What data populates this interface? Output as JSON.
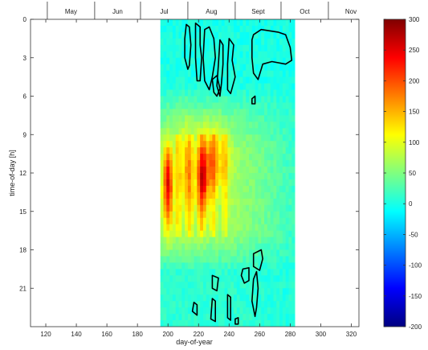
{
  "chart_data": {
    "type": "heatmap",
    "title": "",
    "xlabel": "day-of-year",
    "ylabel": "time-of-day [h]",
    "xlim": [
      110,
      325
    ],
    "ylim": [
      24,
      0
    ],
    "x_ticks": [
      120,
      140,
      160,
      180,
      200,
      220,
      240,
      260,
      280,
      300,
      320
    ],
    "y_ticks": [
      0,
      3,
      6,
      9,
      12,
      15,
      18,
      21
    ],
    "months": [
      {
        "label": "May",
        "start_doy": 121
      },
      {
        "label": "Jun",
        "start_doy": 152
      },
      {
        "label": "Jul",
        "start_doy": 182
      },
      {
        "label": "Aug",
        "start_doy": 213
      },
      {
        "label": "Sept",
        "start_doy": 244
      },
      {
        "label": "Oct",
        "start_doy": 274
      },
      {
        "label": "Nov",
        "start_doy": 305
      }
    ],
    "data_extent": {
      "x": [
        195,
        283
      ],
      "y": [
        0,
        24
      ]
    },
    "colorbar": {
      "colormap": "jet",
      "range": [
        -200,
        300
      ],
      "ticks": [
        300,
        250,
        200,
        150,
        100,
        50,
        0,
        -50,
        -100,
        -150,
        -200
      ]
    },
    "contour_level": 0,
    "hotspots": [
      {
        "day": 200,
        "hour": 13.0,
        "value": 270,
        "day_spread": 3,
        "hour_spread": 3.0
      },
      {
        "day": 223,
        "hour": 12.6,
        "value": 220,
        "day_spread": 4,
        "hour_spread": 2.8
      },
      {
        "day": 230,
        "hour": 11.0,
        "value": 165,
        "day_spread": 8,
        "hour_spread": 2.5
      },
      {
        "day": 212,
        "hour": 12.0,
        "value": 150,
        "day_spread": 6,
        "hour_spread": 3.5
      }
    ],
    "contours": [
      {
        "points": [
          [
            212,
            0.4
          ],
          [
            214,
            0.6
          ],
          [
            215,
            2
          ],
          [
            214,
            3.6
          ],
          [
            213,
            3.9
          ],
          [
            211,
            3
          ],
          [
            211,
            1.5
          ]
        ]
      },
      {
        "points": [
          [
            218,
            0.3
          ],
          [
            221,
            0.6
          ],
          [
            221,
            2
          ],
          [
            222,
            3
          ],
          [
            221,
            4.8
          ],
          [
            219,
            4.8
          ],
          [
            218,
            3
          ]
        ]
      },
      {
        "points": [
          [
            224,
            0.8
          ],
          [
            227,
            0.6
          ],
          [
            230,
            1.5
          ],
          [
            231,
            3
          ],
          [
            229,
            4.5
          ],
          [
            227,
            5.5
          ],
          [
            224,
            4.8
          ],
          [
            223,
            3
          ]
        ]
      },
      {
        "points": [
          [
            229,
            4.7
          ],
          [
            232,
            4.4
          ],
          [
            234,
            5.4
          ],
          [
            232,
            6
          ],
          [
            230,
            5.7
          ]
        ]
      },
      {
        "points": [
          [
            234,
            1.6
          ],
          [
            236,
            2
          ],
          [
            236,
            3.5
          ],
          [
            235,
            5
          ],
          [
            234,
            6
          ],
          [
            232,
            5.2
          ],
          [
            233,
            3.5
          ]
        ]
      },
      {
        "points": [
          [
            240,
            1.5
          ],
          [
            243,
            2
          ],
          [
            242,
            3.2
          ],
          [
            244,
            4.5
          ],
          [
            241,
            5.8
          ],
          [
            239,
            5.5
          ],
          [
            239,
            3.5
          ]
        ]
      },
      {
        "points": [
          [
            255,
            1.6
          ],
          [
            256,
            1.2
          ],
          [
            261,
            0.8
          ],
          [
            272,
            1.0
          ],
          [
            277,
            1.2
          ],
          [
            280,
            2.2
          ],
          [
            281,
            3.2
          ],
          [
            277,
            3.5
          ],
          [
            268,
            3.3
          ],
          [
            262,
            3.5
          ],
          [
            259,
            4.7
          ],
          [
            256,
            4.2
          ],
          [
            255,
            3
          ]
        ]
      },
      {
        "points": [
          [
            255,
            6.2
          ],
          [
            257,
            6.0
          ],
          [
            257,
            6.6
          ],
          [
            255,
            6.6
          ]
        ]
      },
      {
        "points": [
          [
            256,
            18.3
          ],
          [
            261,
            18.0
          ],
          [
            262,
            18.7
          ],
          [
            260,
            19.6
          ],
          [
            256,
            19.3
          ]
        ]
      },
      {
        "points": [
          [
            249,
            19.5
          ],
          [
            253,
            19.4
          ],
          [
            253,
            20.4
          ],
          [
            250,
            20.6
          ],
          [
            248,
            20.0
          ]
        ]
      },
      {
        "points": [
          [
            256,
            20.3
          ],
          [
            258,
            19.7
          ],
          [
            259,
            21.0
          ],
          [
            258,
            22.5
          ],
          [
            257,
            23.2
          ],
          [
            255,
            22.0
          ]
        ]
      },
      {
        "points": [
          [
            229,
            20.0
          ],
          [
            233,
            20.2
          ],
          [
            232,
            21.2
          ],
          [
            229,
            21.0
          ]
        ]
      },
      {
        "points": [
          [
            229,
            21.8
          ],
          [
            231,
            22.0
          ],
          [
            231,
            23.6
          ],
          [
            228,
            23.4
          ]
        ]
      },
      {
        "points": [
          [
            217,
            22.1
          ],
          [
            219,
            22.3
          ],
          [
            219,
            23.1
          ],
          [
            216,
            22.8
          ]
        ]
      },
      {
        "points": [
          [
            239,
            21.5
          ],
          [
            241,
            21.7
          ],
          [
            241,
            23.5
          ],
          [
            239,
            23.3
          ]
        ]
      },
      {
        "points": [
          [
            244,
            23.4
          ],
          [
            246,
            23.3
          ],
          [
            246,
            23.8
          ],
          [
            244,
            23.8
          ]
        ]
      }
    ]
  }
}
